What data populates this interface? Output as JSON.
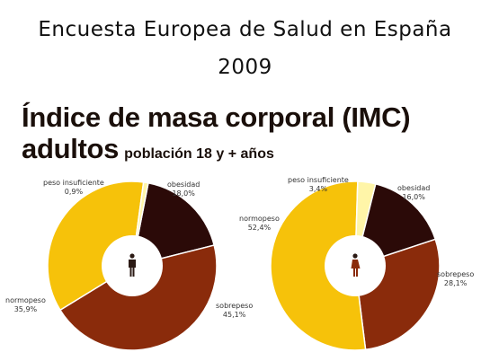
{
  "header": {
    "line1": "Encuesta Europea de Salud en España",
    "line2": "2009",
    "title_line1": "Índice de masa corporal (IMC)",
    "title_line2": "adultos",
    "subtitle": "población 18 y + años"
  },
  "colors": {
    "peso_insuficiente": "#fff5a8",
    "normopeso": "#f6c20a",
    "sobrepeso": "#8a2b0b",
    "obesidad": "#2b0a08",
    "center": "#ffffff"
  },
  "chart_data": [
    {
      "type": "pie",
      "icon": "male-figure-icon",
      "slices": [
        {
          "label": "obesidad",
          "value": 18.0,
          "display": "18,0%"
        },
        {
          "label": "sobrepeso",
          "value": 45.1,
          "display": "45,1%"
        },
        {
          "label": "normopeso",
          "value": 35.9,
          "display": "35,9%"
        },
        {
          "label": "peso insuficiente",
          "value": 0.9,
          "display": "0,9%"
        }
      ]
    },
    {
      "type": "pie",
      "icon": "female-figure-icon",
      "slices": [
        {
          "label": "obesidad",
          "value": 16.0,
          "display": "16,0%"
        },
        {
          "label": "sobrepeso",
          "value": 28.1,
          "display": "28,1%"
        },
        {
          "label": "normopeso",
          "value": 52.4,
          "display": "52,4%"
        },
        {
          "label": "peso insuficiente",
          "value": 3.4,
          "display": "3,4%"
        }
      ]
    }
  ]
}
